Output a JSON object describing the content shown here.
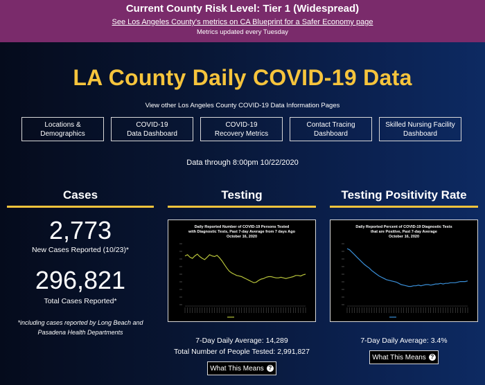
{
  "banner": {
    "title": "Current County Risk Level: Tier 1 (Widespread)",
    "link": "See Los Angeles County's metrics on CA Blueprint for a Safer Economy page",
    "note": "Metrics updated every Tuesday",
    "color": "#7a2b6b"
  },
  "page": {
    "title": "LA County Daily COVID-19 Data",
    "subnav_label": "View other Los Angeles County COVID-19 Data Information Pages",
    "as_of": "Data through 8:00pm 10/22/2020",
    "accent": "#f6c43c"
  },
  "nav": [
    {
      "line1": "Locations &",
      "line2": "Demographics"
    },
    {
      "line1": "COVID-19",
      "line2": "Data Dashboard"
    },
    {
      "line1": "COVID-19",
      "line2": "Recovery Metrics"
    },
    {
      "line1": "Contact Tracing",
      "line2": "Dashboard"
    },
    {
      "line1": "Skilled Nursing Facility",
      "line2": "Dashboard"
    }
  ],
  "cases": {
    "heading": "Cases",
    "new_value": "2,773",
    "new_label": "New Cases Reported (10/23)*",
    "total_value": "296,821",
    "total_label": "Total Cases Reported*",
    "footnote": "*including cases reported by Long Beach and Pasadena Health Departments"
  },
  "testing": {
    "heading": "Testing",
    "chart_title_1": "Daily Reported Number of COVID-19 Persons Tested",
    "chart_title_2": "with Diagnostic Tests, Past 7-day Average from 7 days Ago",
    "chart_title_3": "October 16, 2020",
    "avg": "7-Day Daily Average: 14,289",
    "total": "Total Number of People Tested: 2,991,827",
    "button": "What This Means"
  },
  "positivity": {
    "heading": "Testing Positivity Rate",
    "chart_title_1": "Daily Reported Percent of COVID-19 Diagnostic Tests",
    "chart_title_2": "that are Positive, Past 7-day Average",
    "chart_title_3": "October 16, 2020",
    "avg": "7-Day Daily Average: 3.4%",
    "button": "What This Means"
  },
  "chart_data": [
    {
      "type": "line",
      "title": "Daily Reported Number of COVID-19 Persons Tested with Diagnostic Tests, Past 7-day Average from 7 days Ago October 16, 2020",
      "color": "#b8c43a",
      "values": [
        0.8,
        0.82,
        0.78,
        0.76,
        0.8,
        0.83,
        0.79,
        0.76,
        0.74,
        0.78,
        0.82,
        0.8,
        0.79,
        0.81,
        0.77,
        0.72,
        0.66,
        0.6,
        0.55,
        0.52,
        0.5,
        0.48,
        0.47,
        0.46,
        0.44,
        0.42,
        0.4,
        0.38,
        0.36,
        0.37,
        0.4,
        0.42,
        0.43,
        0.45,
        0.46,
        0.46,
        0.45,
        0.44,
        0.44,
        0.45,
        0.44,
        0.43,
        0.44,
        0.45,
        0.46,
        0.48,
        0.48,
        0.47,
        0.49,
        0.5
      ]
    },
    {
      "type": "line",
      "title": "Daily Reported Percent of COVID-19 Diagnostic Tests that are Positive, Past 7-day Average October 16, 2020",
      "color": "#3a8fd8",
      "values": [
        0.92,
        0.9,
        0.86,
        0.82,
        0.78,
        0.74,
        0.7,
        0.66,
        0.63,
        0.6,
        0.56,
        0.53,
        0.5,
        0.47,
        0.45,
        0.43,
        0.41,
        0.4,
        0.39,
        0.38,
        0.37,
        0.35,
        0.33,
        0.32,
        0.31,
        0.3,
        0.3,
        0.31,
        0.31,
        0.32,
        0.31,
        0.32,
        0.33,
        0.33,
        0.32,
        0.33,
        0.34,
        0.34,
        0.35,
        0.34,
        0.35,
        0.35,
        0.36,
        0.36,
        0.36,
        0.37,
        0.38,
        0.38,
        0.38,
        0.39
      ]
    }
  ]
}
